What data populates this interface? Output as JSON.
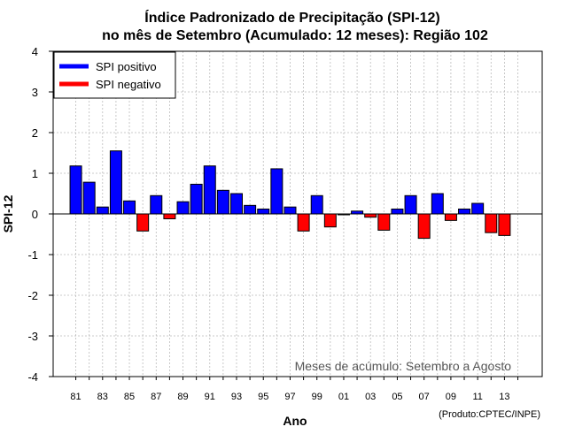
{
  "chart_data": {
    "type": "bar",
    "title_line1": "Índice Padronizado de Precipitação (SPI-12)",
    "title_line2": "no mês de Setembro (Acumulado: 12 meses): Região 102",
    "xlabel": "Ano",
    "ylabel": "SPI-12",
    "ylim": [
      -4,
      4
    ],
    "yticks": [
      -4,
      -3,
      -2,
      -1,
      0,
      1,
      2,
      3,
      4
    ],
    "grid": true,
    "legend_position": "top-left",
    "legend": [
      {
        "label": "SPI positivo",
        "color": "#0000ff"
      },
      {
        "label": "SPI negativo",
        "color": "#ff0000"
      }
    ],
    "positive_color": "#0000ff",
    "negative_color": "#ff0000",
    "annotation": "Meses de acúmulo: Setembro a Agosto",
    "credit": "(Produto:CPTEC/INPE)",
    "years": [
      1981,
      1982,
      1983,
      1984,
      1985,
      1986,
      1987,
      1988,
      1989,
      1990,
      1991,
      1992,
      1993,
      1994,
      1995,
      1996,
      1997,
      1998,
      1999,
      2000,
      2001,
      2002,
      2003,
      2004,
      2005,
      2006,
      2007,
      2008,
      2009,
      2010,
      2011,
      2012,
      2013
    ],
    "x_tick_labels": [
      "81",
      "83",
      "85",
      "87",
      "89",
      "91",
      "93",
      "95",
      "97",
      "99",
      "01",
      "03",
      "05",
      "07",
      "09",
      "11",
      "13"
    ],
    "values": [
      1.18,
      0.78,
      0.17,
      1.55,
      0.32,
      -0.42,
      0.45,
      -0.12,
      0.3,
      0.73,
      1.18,
      0.58,
      0.5,
      0.21,
      0.12,
      1.11,
      0.17,
      -0.42,
      0.45,
      -0.32,
      -0.02,
      0.07,
      -0.08,
      -0.4,
      0.12,
      0.45,
      -0.6,
      0.5,
      -0.16,
      0.12,
      0.26,
      -0.46,
      -0.53
    ]
  }
}
